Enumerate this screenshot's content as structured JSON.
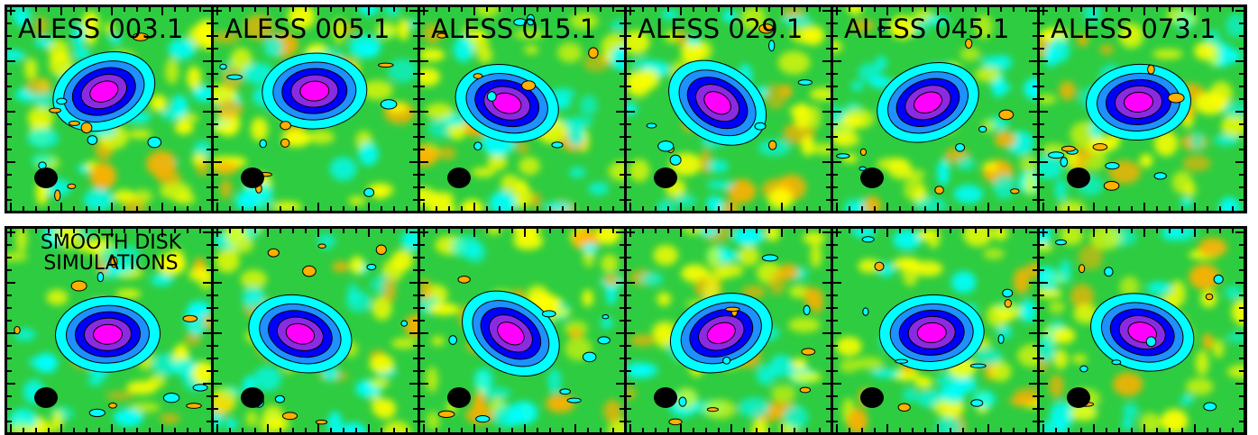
{
  "figure": {
    "top_row_labels": [
      "ALESS 003.1",
      "ALESS 005.1",
      "ALESS 015.1",
      "ALESS 029.1",
      "ALESS 045.1",
      "ALESS 073.1"
    ],
    "bottom_row_label": {
      "line1": "SMOOTH DISK",
      "line2": "SIMULATIONS"
    },
    "colormap": [
      "#ffb000",
      "#ffff00",
      "#2ecc40",
      "#00ffff",
      "#1e90ff",
      "#0000ff",
      "#ff00ff"
    ],
    "contour_color": "#000000",
    "beam_color": "#000000"
  }
}
